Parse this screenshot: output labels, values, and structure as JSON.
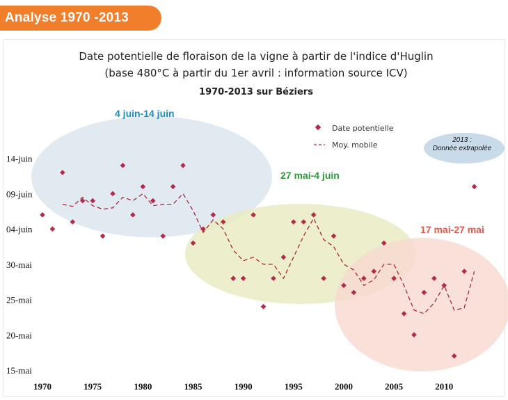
{
  "header": {
    "tab_label": "Analyse 1970 -2013"
  },
  "chart_data": {
    "type": "scatter",
    "title": "Date potentielle de floraison de la vigne à partir de l'indice d'Huglin",
    "subtitle": "(base 480°C à partir du 1er avril : information source ICV)",
    "subtitle2": "1970-2013 sur Béziers",
    "xlabel": "",
    "ylabel": "",
    "xlim": [
      1970,
      2014
    ],
    "ylim": [
      0,
      35
    ],
    "x_ticks": [
      1970,
      1975,
      1980,
      1985,
      1990,
      1995,
      2000,
      2005,
      2010
    ],
    "y_ticks": [
      {
        "v": 0,
        "label": "15-mai"
      },
      {
        "v": 5,
        "label": "20-mai"
      },
      {
        "v": 10,
        "label": "25-mai"
      },
      {
        "v": 15,
        "label": "30-mai"
      },
      {
        "v": 20,
        "label": "04-juin"
      },
      {
        "v": 25,
        "label": "09-juin"
      },
      {
        "v": 30,
        "label": "14-juin"
      }
    ],
    "legend": {
      "position": "top-right",
      "point_label": "Date potentielle",
      "line_label": "Moy. mobile"
    },
    "series": [
      {
        "name": "Date potentielle",
        "x": [
          1970,
          1971,
          1972,
          1973,
          1974,
          1975,
          1976,
          1977,
          1978,
          1979,
          1980,
          1981,
          1982,
          1983,
          1984,
          1985,
          1986,
          1987,
          1988,
          1989,
          1990,
          1991,
          1992,
          1993,
          1994,
          1995,
          1996,
          1997,
          1998,
          1999,
          2000,
          2001,
          2002,
          2003,
          2004,
          2005,
          2006,
          2007,
          2008,
          2009,
          2010,
          2011,
          2012,
          2013
        ],
        "y": [
          22,
          20,
          28,
          21,
          24,
          24,
          19,
          25,
          29,
          22,
          26,
          24,
          19,
          26,
          29,
          18,
          20,
          22,
          21,
          13,
          13,
          22,
          9,
          13,
          16,
          21,
          21,
          22,
          13,
          19,
          12,
          11,
          13,
          14,
          18,
          13,
          8,
          5,
          11,
          13,
          12,
          2,
          14,
          26
        ]
      },
      {
        "name": "Moy. mobile",
        "x": [
          1972,
          1973,
          1974,
          1975,
          1976,
          1977,
          1978,
          1979,
          1980,
          1981,
          1982,
          1983,
          1984,
          1985,
          1986,
          1987,
          1988,
          1989,
          1990,
          1991,
          1992,
          1993,
          1994,
          1995,
          1996,
          1997,
          1998,
          1999,
          2000,
          2001,
          2002,
          2003,
          2004,
          2005,
          2006,
          2007,
          2008,
          2009,
          2010,
          2011,
          2012,
          2013
        ],
        "y": [
          23.5,
          23.2,
          24.5,
          23.3,
          22.8,
          23.0,
          24.5,
          24.0,
          25.0,
          23.3,
          23.5,
          23.5,
          25.0,
          22.6,
          19.5,
          21.3,
          20.0,
          17.0,
          15.5,
          16.0,
          15.0,
          15.0,
          13.0,
          16.0,
          19.0,
          21.5,
          18.5,
          17.5,
          15.0,
          14.2,
          12.0,
          12.8,
          15.0,
          15.0,
          12.0,
          8.5,
          8.0,
          9.5,
          12.0,
          8.5,
          8.8,
          14.0
        ]
      }
    ],
    "annotations": [
      {
        "text": "4 juin-14 juin",
        "color": "#1a8fc2"
      },
      {
        "text": "27 mai-4 juin",
        "color": "#2c9a3a"
      },
      {
        "text": "17 mai-27 mai",
        "color": "#e4594d"
      }
    ],
    "note_lines": [
      "2013 :",
      "Donnée extrapolée"
    ],
    "colors": {
      "marker": "#b52a4a",
      "moving_average": "#a8283e",
      "zone_blue": "#dfe8f0",
      "zone_green": "#e9ebc3",
      "zone_red": "#f8d9d0",
      "zone_note": "#c9dbe9"
    }
  }
}
